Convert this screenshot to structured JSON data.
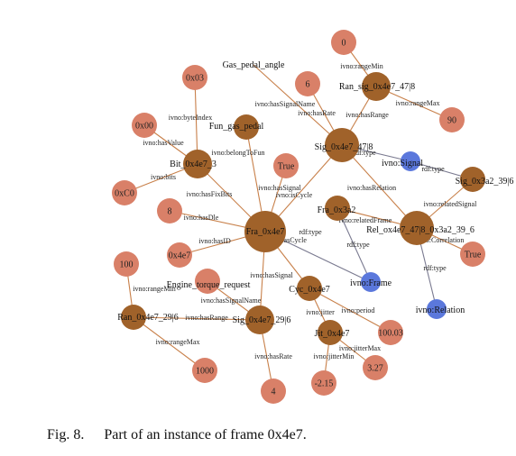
{
  "caption": {
    "fig_label": "Fig. 8.",
    "text": "Part of an instance of frame 0x4e7."
  },
  "colors": {
    "instance": "#A0622A",
    "literal": "#D98068",
    "class": "#5B78DC",
    "edge_instance": "#C8804A",
    "edge_type": "#7A7A90"
  },
  "nodes": [
    {
      "id": "fra",
      "label": "Fra_0x4e7",
      "kind": "instance",
      "size": "xl"
    },
    {
      "id": "sig47",
      "label": "Sig_0x4e7_47|8",
      "kind": "instance",
      "size": "lg"
    },
    {
      "id": "bit",
      "label": "Bit_0x4e7_3",
      "kind": "instance",
      "size": "md"
    },
    {
      "id": "fun",
      "label": "Fun_gas_pedal",
      "kind": "instance",
      "size": "sm"
    },
    {
      "id": "ransig",
      "label": "Ran_sig_0x4e7_47|8",
      "kind": "instance",
      "size": "md"
    },
    {
      "id": "sig3a2",
      "label": "Sig_0x3a2_39|6",
      "kind": "instance",
      "size": "sm"
    },
    {
      "id": "fra3a2",
      "label": "Fra_0x3a2",
      "kind": "instance",
      "size": "sm"
    },
    {
      "id": "rel",
      "label": "Rel_ox4e7_47|8_0x3a2_39_6",
      "kind": "instance",
      "size": "lg"
    },
    {
      "id": "cyc",
      "label": "Cyc_0x4e7",
      "kind": "instance",
      "size": "sm"
    },
    {
      "id": "sig29",
      "label": "Sig_0x4e7_29|6",
      "kind": "instance",
      "size": "md"
    },
    {
      "id": "ran29",
      "label": "Ran_0x4e7_29|6",
      "kind": "instance",
      "size": "sm"
    },
    {
      "id": "jit",
      "label": "Jit_0x4e7",
      "kind": "instance",
      "size": "sm"
    },
    {
      "id": "lit0",
      "label": "0",
      "kind": "literal"
    },
    {
      "id": "lit6",
      "label": "6",
      "kind": "literal"
    },
    {
      "id": "lit90",
      "label": "90",
      "kind": "literal"
    },
    {
      "id": "lit0x03",
      "label": "0x03",
      "kind": "literal"
    },
    {
      "id": "lit0x00",
      "label": "0x00",
      "kind": "literal"
    },
    {
      "id": "lit0xC0",
      "label": "0xC0",
      "kind": "literal"
    },
    {
      "id": "littrue1",
      "label": "True",
      "kind": "literal"
    },
    {
      "id": "lit8",
      "label": "8",
      "kind": "literal"
    },
    {
      "id": "lit0x4e7",
      "label": "0x4e7",
      "kind": "literal"
    },
    {
      "id": "lit100",
      "label": "100",
      "kind": "literal"
    },
    {
      "id": "lit1000",
      "label": "1000",
      "kind": "literal"
    },
    {
      "id": "lit4",
      "label": "4",
      "kind": "literal"
    },
    {
      "id": "lit215",
      "label": "-2.15",
      "kind": "literal"
    },
    {
      "id": "lit327",
      "label": "3.27",
      "kind": "literal"
    },
    {
      "id": "lit10003",
      "label": "100.03",
      "kind": "literal"
    },
    {
      "id": "littrue2",
      "label": "True",
      "kind": "literal"
    },
    {
      "id": "etr",
      "label": "",
      "kind": "literal"
    },
    {
      "id": "clsSignal",
      "label": "ivno:Signal",
      "kind": "class"
    },
    {
      "id": "clsFrame",
      "label": "ivno:Frame",
      "kind": "class"
    },
    {
      "id": "clsRelation",
      "label": "ivno:Relation",
      "kind": "class"
    }
  ],
  "free_labels": [
    {
      "id": "gas",
      "label": "Gas_pedal_angle"
    },
    {
      "id": "etrlbl",
      "label": "Engine_torque_request"
    }
  ],
  "edges": [
    {
      "from": "ransig",
      "to": "lit0",
      "label": "ivno:rangeMin",
      "kind": "instance"
    },
    {
      "from": "ransig",
      "to": "lit90",
      "label": "ivno:rangeMax",
      "kind": "instance"
    },
    {
      "from": "sig47",
      "to": "ransig",
      "label": "ivno:hasRange",
      "kind": "instance"
    },
    {
      "from": "sig47",
      "to": "lit6",
      "label": "ivno:hasRate",
      "kind": "instance"
    },
    {
      "from": "sig47",
      "to": "gas",
      "label": "ivno:hasSignalName",
      "kind": "instance"
    },
    {
      "from": "sig47",
      "to": "clsSignal",
      "label": "rdf:type",
      "kind": "type"
    },
    {
      "from": "sig47",
      "to": "rel",
      "label": "ivno:hasRelation",
      "kind": "instance"
    },
    {
      "from": "fra",
      "to": "sig47",
      "label": "ivno:hasSignal",
      "kind": "instance"
    },
    {
      "from": "bit",
      "to": "lit0x03",
      "label": "ivno:byteIndex",
      "kind": "instance"
    },
    {
      "from": "bit",
      "to": "lit0x00",
      "label": "ivno:hasValue",
      "kind": "instance"
    },
    {
      "from": "bit",
      "to": "lit0xC0",
      "label": "ivno:bits",
      "kind": "instance"
    },
    {
      "from": "fra",
      "to": "bit",
      "label": "ivno:hasFixBits",
      "kind": "instance"
    },
    {
      "from": "fra",
      "to": "fun",
      "label": "ivno:belongToFun",
      "kind": "instance"
    },
    {
      "from": "fra",
      "to": "littrue1",
      "label": "ivno:isCycle",
      "kind": "instance"
    },
    {
      "from": "fra",
      "to": "lit8",
      "label": "ivno:hasDle",
      "kind": "instance"
    },
    {
      "from": "fra",
      "to": "lit0x4e7",
      "label": "ivno:hasID",
      "kind": "instance"
    },
    {
      "from": "fra",
      "to": "clsFrame",
      "label": "rdf:type",
      "kind": "type"
    },
    {
      "from": "fra",
      "to": "cyc",
      "label": "ivno:hasCycle",
      "kind": "instance"
    },
    {
      "from": "fra",
      "to": "sig29",
      "label": "ivno:hasSignal",
      "kind": "instance"
    },
    {
      "from": "sig29",
      "to": "etr",
      "label": "ivno:hasSignalName",
      "kind": "instance"
    },
    {
      "from": "sig29",
      "to": "ran29",
      "label": "ivno:hasRange",
      "kind": "instance"
    },
    {
      "from": "sig29",
      "to": "lit4",
      "label": "ivno:hasRate",
      "kind": "instance"
    },
    {
      "from": "ran29",
      "to": "lit100",
      "label": "ivno:rangeMin",
      "kind": "instance"
    },
    {
      "from": "ran29",
      "to": "lit1000",
      "label": "ivno:rangeMax",
      "kind": "instance"
    },
    {
      "from": "cyc",
      "to": "jit",
      "label": "ivno:jitter",
      "kind": "instance"
    },
    {
      "from": "cyc",
      "to": "lit10003",
      "label": "ivno:period",
      "kind": "instance"
    },
    {
      "from": "jit",
      "to": "lit215",
      "label": "ivno:jitterMin",
      "kind": "instance"
    },
    {
      "from": "jit",
      "to": "lit327",
      "label": "ivno:jitterMax",
      "kind": "instance"
    },
    {
      "from": "rel",
      "to": "sig3a2",
      "label": "ivno:relatedSignal",
      "kind": "instance"
    },
    {
      "from": "rel",
      "to": "fra3a2",
      "label": "ivno:relatedFrame",
      "kind": "instance"
    },
    {
      "from": "rel",
      "to": "littrue2",
      "label": "ivno:Correlation",
      "kind": "instance"
    },
    {
      "from": "rel",
      "to": "clsRelation",
      "label": "rdf:type",
      "kind": "type"
    },
    {
      "from": "sig3a2",
      "to": "clsSignal",
      "label": "rdf:type",
      "kind": "type"
    },
    {
      "from": "fra3a2",
      "to": "clsFrame",
      "label": "rdf:type",
      "kind": "type"
    }
  ]
}
